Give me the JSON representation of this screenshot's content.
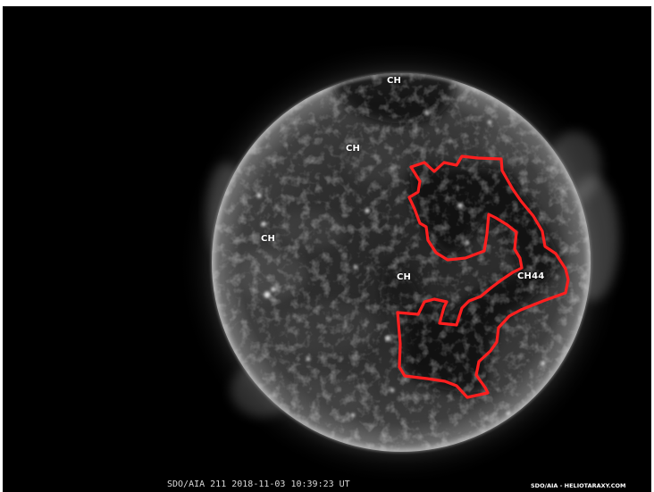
{
  "image": {
    "subject": "Solar disk in extreme ultraviolet with coronal hole markings",
    "background_color": "#000000",
    "outline_color": "#ff1f1f"
  },
  "labels": {
    "ch_north": "CH",
    "ch_center_upper": "CH",
    "ch_west": "CH",
    "ch_center": "CH",
    "ch44": "CH44"
  },
  "footer": {
    "caption": "SDO/AIA  211   2018-11-03 10:39:23 UT",
    "credit": "SDO/AIA - HELIOTARAXY.COM"
  }
}
